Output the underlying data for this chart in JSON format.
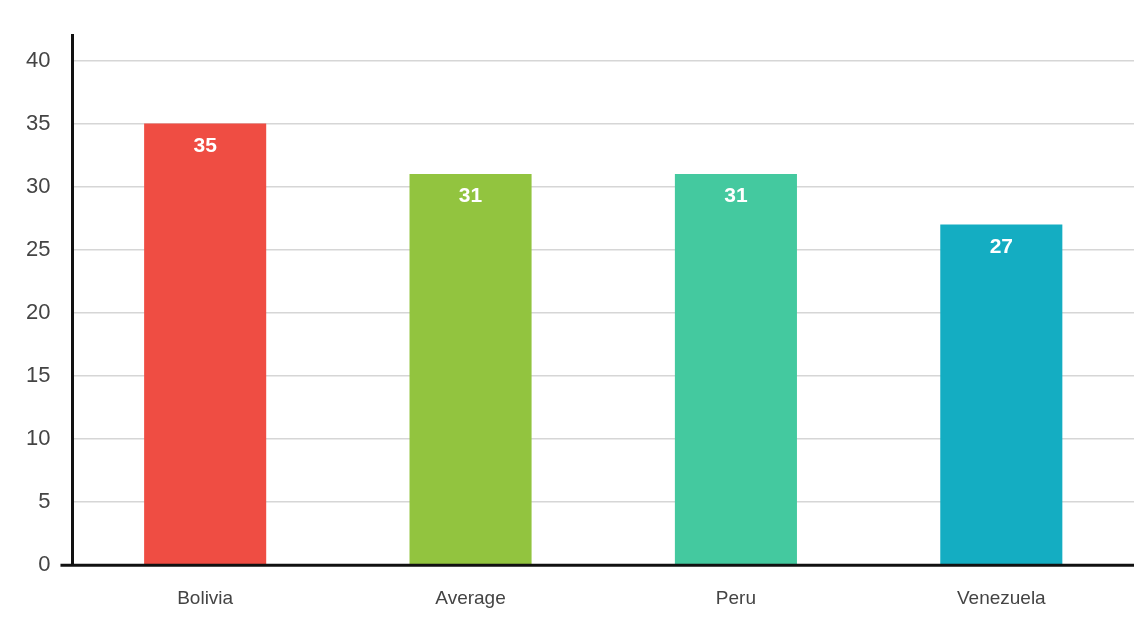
{
  "chart_data": {
    "type": "bar",
    "categories": [
      "Bolivia",
      "Average",
      "Peru",
      "Venezuela"
    ],
    "values": [
      35,
      31,
      31,
      27
    ],
    "colors": [
      "#ef4d43",
      "#92c43f",
      "#44c99f",
      "#14adc2"
    ],
    "ylim": [
      0,
      42
    ],
    "yticks": [
      0,
      5,
      10,
      15,
      20,
      25,
      30,
      35,
      40
    ],
    "grid": "y",
    "data_labels": true
  }
}
